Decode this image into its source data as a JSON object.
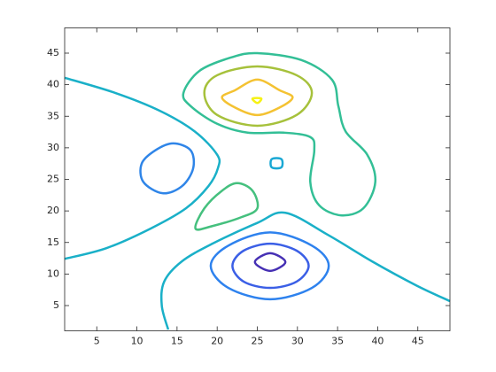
{
  "chart_data": {
    "type": "contour",
    "xlim": [
      1,
      49
    ],
    "ylim": [
      1,
      49
    ],
    "xticks": [
      5,
      10,
      15,
      20,
      25,
      30,
      35,
      40,
      45
    ],
    "yticks": [
      5,
      10,
      15,
      20,
      25,
      30,
      35,
      40,
      45
    ],
    "series": [
      {
        "color": "#1ab0c8",
        "closed": false,
        "x": [
          1.0,
          7.3,
          12.8,
          17.2,
          20.0,
          20.1,
          18.9,
          16.1,
          11.7,
          6.2,
          1.0
        ],
        "y": [
          41.1,
          38.7,
          35.9,
          32.6,
          28.9,
          26.8,
          23.9,
          20.4,
          17.2,
          14.1,
          12.4
        ]
      },
      {
        "color": "#1ab0c8",
        "closed": false,
        "x": [
          13.9,
          13.1,
          13.4,
          15.6,
          19.4,
          25.0,
          28.5,
          33.8,
          39.3,
          44.8,
          49.0
        ],
        "y": [
          1.2,
          5.0,
          8.8,
          12.0,
          14.8,
          18.1,
          19.7,
          16.2,
          12.0,
          8.2,
          5.7
        ]
      },
      {
        "color": "#1aa8d4",
        "closed": true,
        "x": [
          26.8,
          28.0,
          28.0,
          26.8
        ],
        "y": [
          28.2,
          28.2,
          26.9,
          26.9
        ]
      },
      {
        "color": "#2f85e8",
        "closed": true,
        "x": [
          12.3,
          14.5,
          16.7,
          17.0,
          15.6,
          13.2,
          10.8,
          10.6
        ],
        "y": [
          29.6,
          30.7,
          29.6,
          26.7,
          23.9,
          22.8,
          24.6,
          27.5
        ]
      },
      {
        "color": "#45c07e",
        "closed": true,
        "x": [
          17.3,
          18.4,
          20.6,
          22.5,
          24.4,
          25.0,
          23.0,
          19.4
        ],
        "y": [
          17.2,
          20.4,
          23.2,
          24.4,
          23.2,
          20.4,
          19.0,
          17.6
        ]
      },
      {
        "color": "#33bf96",
        "closed": true,
        "x": [
          15.8,
          17.8,
          21.7,
          25.0,
          30.5,
          34.3,
          35.1,
          36.0,
          38.7,
          39.7,
          38.2,
          35.4,
          32.7,
          31.6,
          32.1,
          31.6,
          28.3,
          23.8,
          20.0,
          16.7
        ],
        "y": [
          38.7,
          42.2,
          44.3,
          45.0,
          43.9,
          40.8,
          36.6,
          32.6,
          28.9,
          24.6,
          20.4,
          19.3,
          20.9,
          24.6,
          29.6,
          31.7,
          32.4,
          32.4,
          33.8,
          36.6
        ]
      },
      {
        "color": "#a6c13b",
        "closed": true,
        "x": [
          18.4,
          20.0,
          25.0,
          29.9,
          31.8,
          29.9,
          25.0,
          20.0
        ],
        "y": [
          38.7,
          41.5,
          42.9,
          41.5,
          38.7,
          35.2,
          33.5,
          35.2
        ]
      },
      {
        "color": "#f4c232",
        "closed": true,
        "x": [
          20.6,
          22.2,
          25.0,
          27.8,
          29.4,
          27.8,
          25.0,
          22.2
        ],
        "y": [
          38.0,
          39.1,
          40.8,
          39.1,
          38.0,
          36.4,
          35.2,
          36.4
        ]
      },
      {
        "color": "#f6f214",
        "closed": true,
        "x": [
          24.4,
          25.5,
          25.0
        ],
        "y": [
          37.8,
          37.8,
          37.1
        ]
      },
      {
        "color": "#2e82ee",
        "closed": true,
        "x": [
          19.2,
          21.4,
          26.6,
          31.8,
          33.9,
          31.8,
          26.6,
          21.4
        ],
        "y": [
          11.3,
          14.5,
          16.6,
          14.5,
          11.3,
          7.8,
          6.0,
          7.8
        ]
      },
      {
        "color": "#3b5fe6",
        "closed": true,
        "x": [
          21.9,
          23.3,
          26.6,
          29.9,
          31.4,
          29.9,
          26.6,
          23.3
        ],
        "y": [
          11.3,
          13.7,
          14.8,
          13.7,
          11.3,
          8.8,
          7.8,
          8.8
        ]
      },
      {
        "color": "#4630b4",
        "closed": true,
        "x": [
          24.7,
          26.6,
          28.5,
          26.6
        ],
        "y": [
          11.9,
          13.3,
          11.9,
          10.5
        ]
      }
    ]
  }
}
